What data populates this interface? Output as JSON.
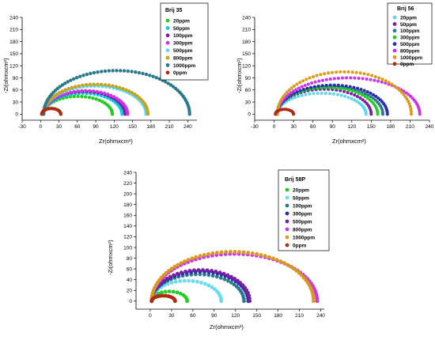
{
  "chart_data": [
    {
      "type": "scatter",
      "legend_title": "Brij 35",
      "xlabel": "Zr(ohmxcm²)",
      "ylabel": "-Zi(ohmxcm²)",
      "xlim": [
        -30,
        255
      ],
      "ylim": [
        -15,
        240
      ],
      "xticks": [
        "-30",
        "0",
        "30",
        "60",
        "90",
        "120",
        "150",
        "180",
        "210",
        "240"
      ],
      "yticks": [
        "0",
        "30",
        "60",
        "90",
        "120",
        "150",
        "180",
        "210",
        "240"
      ],
      "legend_position": "top-right",
      "series": [
        {
          "name": "20ppm",
          "color": "#22cc22",
          "x0": 5,
          "x1": 117,
          "peak": 44
        },
        {
          "name": "50ppm",
          "color": "#00cfe0",
          "x0": 5,
          "x1": 133,
          "peak": 52
        },
        {
          "name": "100ppm",
          "color": "#7a1fa2",
          "x0": 5,
          "x1": 138,
          "peak": 56
        },
        {
          "name": "300ppm",
          "color": "#cc33ee",
          "x0": 5,
          "x1": 142,
          "peak": 58
        },
        {
          "name": "500ppm",
          "color": "#5ad8f0",
          "x0": 5,
          "x1": 172,
          "peak": 70
        },
        {
          "name": "800ppm",
          "color": "#c8a21a",
          "x0": 5,
          "x1": 175,
          "peak": 74
        },
        {
          "name": "1000ppm",
          "color": "#2a7a8c",
          "x0": 5,
          "x1": 243,
          "peak": 108
        },
        {
          "name": "0ppm",
          "color": "#b02a10",
          "x0": 2,
          "x1": 33,
          "peak": 14
        }
      ]
    },
    {
      "type": "scatter",
      "legend_title": "Brij 56",
      "xlabel": "Zr(ohmxcm²)",
      "ylabel": "-Zi(ohmxcm²)",
      "xlim": [
        -30,
        240
      ],
      "ylim": [
        -15,
        240
      ],
      "xticks": [
        "-30",
        "0",
        "30",
        "60",
        "90",
        "120",
        "150",
        "180",
        "210",
        "240"
      ],
      "yticks": [
        "0",
        "30",
        "60",
        "90",
        "120",
        "150",
        "180",
        "210",
        "240"
      ],
      "legend_position": "top-right",
      "series": [
        {
          "name": "20ppm",
          "color": "#5ad8f0",
          "x0": 5,
          "x1": 142,
          "peak": 52
        },
        {
          "name": "50ppm",
          "color": "#7a1fa2",
          "x0": 5,
          "x1": 150,
          "peak": 62
        },
        {
          "name": "100ppm",
          "color": "#2a7a8c",
          "x0": 5,
          "x1": 168,
          "peak": 68
        },
        {
          "name": "300ppm",
          "color": "#22cc22",
          "x0": 5,
          "x1": 160,
          "peak": 66
        },
        {
          "name": "500ppm",
          "color": "#2b2bb0",
          "x0": 5,
          "x1": 175,
          "peak": 72
        },
        {
          "name": "800ppm",
          "color": "#cc33ee",
          "x0": 5,
          "x1": 225,
          "peak": 90
        },
        {
          "name": "1000ppm",
          "color": "#d89a1a",
          "x0": 5,
          "x1": 212,
          "peak": 105
        },
        {
          "name": "0ppm",
          "color": "#b02a10",
          "x0": 2,
          "x1": 30,
          "peak": 12
        }
      ]
    },
    {
      "type": "scatter",
      "legend_title": "Brij 58P",
      "xlabel": "Zr(ohmxcm²)",
      "ylabel": "-Zi(ohmxcm²)",
      "xlim": [
        -20,
        245
      ],
      "ylim": [
        -15,
        240
      ],
      "xticks": [
        "0",
        "30",
        "60",
        "90",
        "120",
        "150",
        "180",
        "210",
        "240"
      ],
      "yticks": [
        "0",
        "20",
        "40",
        "60",
        "80",
        "100",
        "120",
        "140",
        "160",
        "180",
        "200",
        "220",
        "240"
      ],
      "legend_position": "top-right",
      "series": [
        {
          "name": "20ppm",
          "color": "#22cc22",
          "x0": 2,
          "x1": 52,
          "peak": 18
        },
        {
          "name": "50ppm",
          "color": "#66ddf0",
          "x0": 2,
          "x1": 100,
          "peak": 38
        },
        {
          "name": "100ppm",
          "color": "#2a7a8c",
          "x0": 2,
          "x1": 132,
          "peak": 50
        },
        {
          "name": "300ppm",
          "color": "#2b2bb0",
          "x0": 2,
          "x1": 138,
          "peak": 55
        },
        {
          "name": "500ppm",
          "color": "#7a1fa2",
          "x0": 2,
          "x1": 140,
          "peak": 58
        },
        {
          "name": "800ppm",
          "color": "#cc33ee",
          "x0": 2,
          "x1": 235,
          "peak": 88
        },
        {
          "name": "1000ppm",
          "color": "#d89a1a",
          "x0": 2,
          "x1": 230,
          "peak": 92
        },
        {
          "name": "0ppm",
          "color": "#b02a10",
          "x0": 2,
          "x1": 35,
          "peak": 10
        }
      ]
    }
  ]
}
